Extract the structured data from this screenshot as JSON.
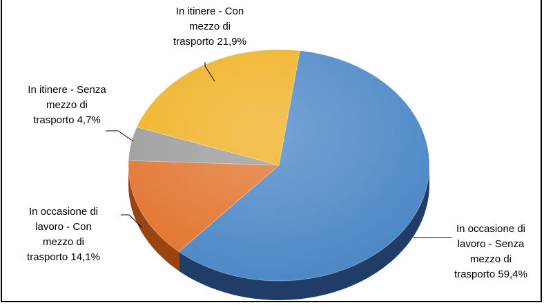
{
  "chart_data": {
    "type": "pie",
    "title": "",
    "style": "3d",
    "legend": "none",
    "slices": [
      {
        "label": [
          "In occasione di",
          "lavoro - Senza",
          "mezzo di",
          "trasporto 59,4%"
        ],
        "value": 59.4,
        "color": "#4a86c6",
        "side_color": "#1f3d66"
      },
      {
        "label": [
          "In occasione di",
          "lavoro - Con",
          "mezzo di",
          "trasporto 14,1%"
        ],
        "value": 14.1,
        "color": "#e2732c",
        "side_color": "#9a4412"
      },
      {
        "label": [
          "In itinere - Senza",
          "mezzo di",
          "trasporto 4,7%"
        ],
        "value": 4.7,
        "color": "#9a9a9a",
        "side_color": "#5a5a5a"
      },
      {
        "label": [
          "In itinere - Con",
          "mezzo di",
          "trasporto 21,9%"
        ],
        "value": 21.9,
        "color": "#f0b020",
        "side_color": "#a07510"
      }
    ]
  }
}
